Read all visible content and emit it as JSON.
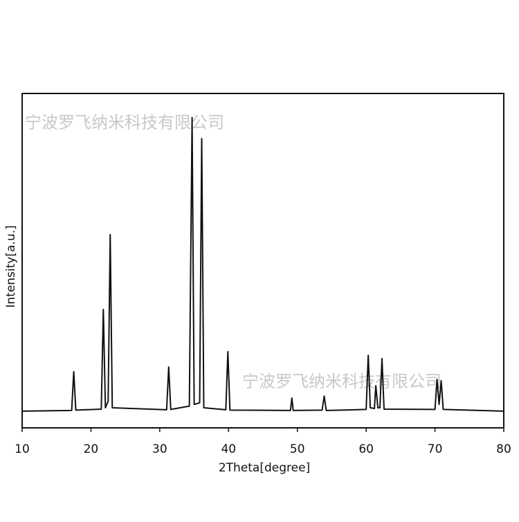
{
  "chart_data": {
    "type": "line",
    "x_label": "2Theta[degree]",
    "y_label": "Intensity[a.u.]",
    "watermarks": [
      "宁波罗飞纳米科技有限公司",
      "宁波罗飞纳米科技有限公司"
    ],
    "x": [
      10,
      17.2,
      17.5,
      17.8,
      21.5,
      21.8,
      22.1,
      22.5,
      22.8,
      23.1,
      31.0,
      31.3,
      31.6,
      34.3,
      34.7,
      35.0,
      35.8,
      36.1,
      36.4,
      39.6,
      39.9,
      40.2,
      49.0,
      49.2,
      49.4,
      53.6,
      53.9,
      54.2,
      60.0,
      60.3,
      60.6,
      61.2,
      61.4,
      61.7,
      62.0,
      62.3,
      62.6,
      70.0,
      70.3,
      70.6,
      70.9,
      71.2,
      80
    ],
    "values": [
      5,
      5.2,
      16.8,
      5.3,
      5.6,
      35.4,
      6,
      8,
      57.8,
      6,
      5.4,
      18.2,
      5.5,
      6.5,
      92.8,
      7,
      7.5,
      86.5,
      6,
      5.4,
      22.8,
      5.3,
      5.2,
      8.9,
      5.2,
      5.3,
      9.5,
      5.2,
      5.5,
      21.7,
      6,
      5.8,
      12.6,
      6,
      6,
      20.7,
      5.6,
      5.5,
      14.5,
      7,
      14.1,
      5.5,
      5
    ],
    "color": "#111111",
    "xlim": [
      10,
      80
    ],
    "xticks": [
      10,
      20,
      30,
      40,
      50,
      60,
      70,
      80
    ],
    "ylim": [
      0,
      100
    ]
  }
}
